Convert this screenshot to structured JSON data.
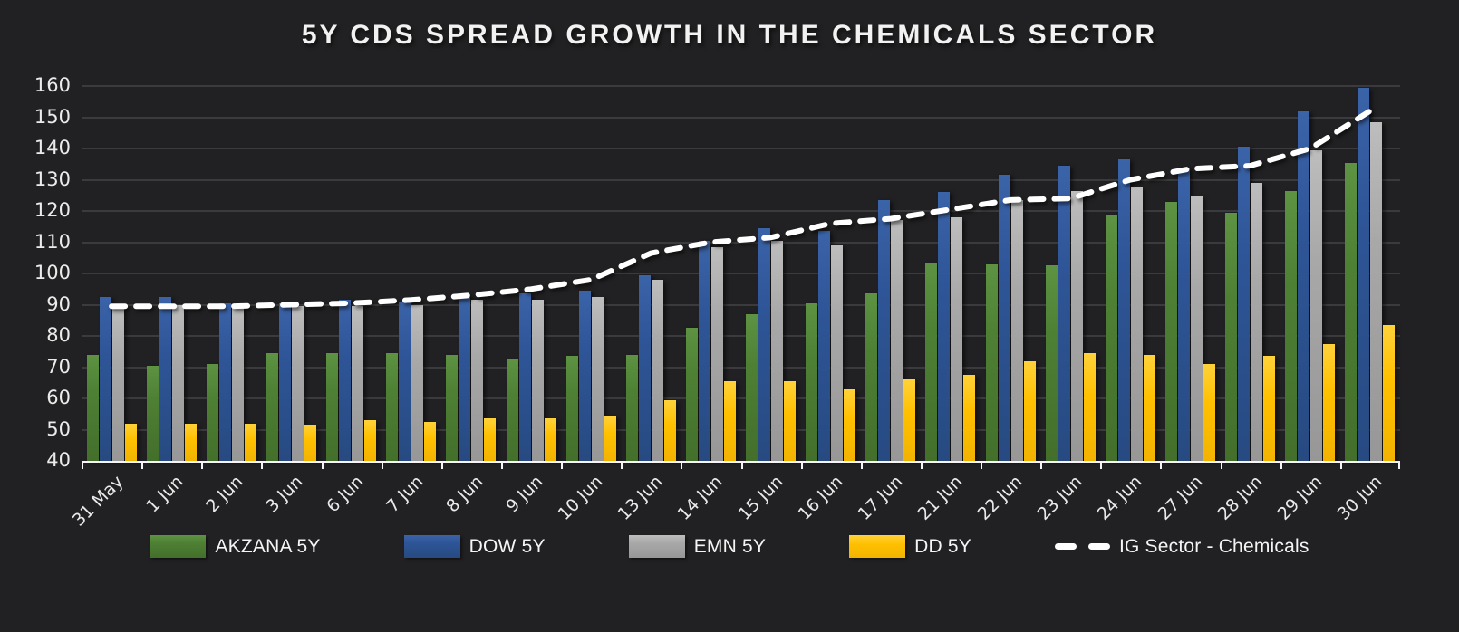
{
  "title": "5Y CDS SPREAD GROWTH IN THE CHEMICALS SECTOR",
  "colors": {
    "background": "#212123",
    "gridline": "#3b3b3d",
    "axis_text": "#ebebeb",
    "axis_line": "#f5f5f5",
    "akzana_green": "#4e8034",
    "dow_blue": "#2e5597",
    "emn_gray": "#a8a8a8",
    "dd_yellow": "#ffc000",
    "ig_line_white": "#ffffff"
  },
  "chart_data": {
    "type": "bar",
    "title": "5Y CDS SPREAD GROWTH IN THE CHEMICALS SECTOR",
    "categories": [
      "31 May",
      "1 Jun",
      "2 Jun",
      "3 Jun",
      "6 Jun",
      "7 Jun",
      "8 Jun",
      "9 Jun",
      "10 Jun",
      "13 Jun",
      "14 Jun",
      "15 Jun",
      "16 Jun",
      "17 Jun",
      "21 Jun",
      "22 Jun",
      "23 Jun",
      "24 Jun",
      "27 Jun",
      "28 Jun",
      "29 Jun",
      "30 Jun"
    ],
    "series": [
      {
        "name": "AKZANA 5Y",
        "render": "bar",
        "color": "#4e8034",
        "values": [
          74,
          70.5,
          71,
          74.5,
          74.5,
          74.5,
          74,
          72.5,
          73.5,
          74,
          82.5,
          87,
          90.5,
          93.5,
          103.5,
          103,
          102.5,
          118.5,
          123,
          119.5,
          126.5,
          135.5
        ]
      },
      {
        "name": "DOW 5Y",
        "render": "bar",
        "color": "#2e5597",
        "values": [
          92.5,
          92.5,
          90.5,
          90.5,
          91.5,
          91,
          92.5,
          93.5,
          94.5,
          99.5,
          110.5,
          114.5,
          113.5,
          123.5,
          126,
          131.5,
          134.5,
          136.5,
          133.5,
          140.5,
          152,
          159.5
        ]
      },
      {
        "name": "EMN 5Y",
        "render": "bar",
        "color": "#a8a8a8",
        "values": [
          89.5,
          90,
          89,
          89.5,
          89.5,
          90,
          91.5,
          91.5,
          92.5,
          98,
          108.5,
          110.5,
          109,
          117,
          118,
          123.5,
          126.5,
          127.5,
          124.5,
          129,
          139.5,
          148.5
        ]
      },
      {
        "name": "DD 5Y",
        "render": "bar",
        "color": "#ffc000",
        "values": [
          52,
          52,
          52,
          51.5,
          53,
          52.5,
          53.5,
          53.5,
          54.5,
          59.5,
          65.5,
          65.5,
          63,
          66,
          67.5,
          72,
          74.5,
          74,
          71,
          73.5,
          77.5,
          83.5
        ]
      },
      {
        "name": "IG Sector - Chemicals",
        "render": "line",
        "style": "dashed",
        "color": "#ffffff",
        "values": [
          89.5,
          89.5,
          89.5,
          90,
          90.5,
          91.5,
          93,
          95,
          98,
          106.5,
          110,
          111.5,
          116,
          117.5,
          120.5,
          123.5,
          124,
          130,
          133.5,
          134.5,
          140,
          152
        ]
      }
    ],
    "xlabel": "",
    "ylabel": "",
    "ylim": [
      40,
      160
    ],
    "ytick_step": 10,
    "y_tick_labels": [
      "40",
      "50",
      "60",
      "70",
      "80",
      "90",
      "100",
      "110",
      "120",
      "130",
      "140",
      "150",
      "160"
    ],
    "grid": true,
    "legend_position": "bottom"
  }
}
